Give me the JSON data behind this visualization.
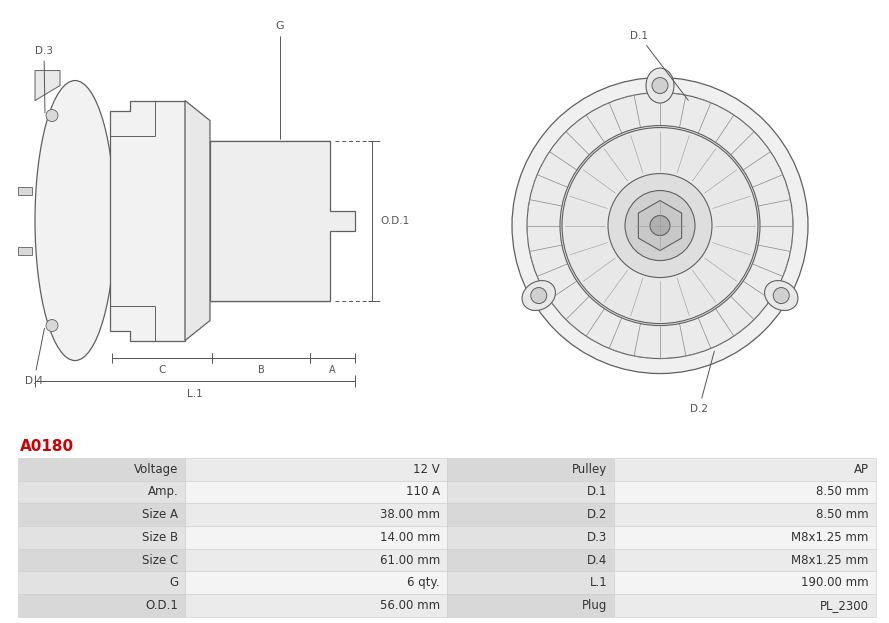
{
  "title": "A0180",
  "title_color": "#cc0000",
  "table_rows": [
    [
      "Voltage",
      "12 V",
      "Pulley",
      "AP"
    ],
    [
      "Amp.",
      "110 A",
      "D.1",
      "8.50 mm"
    ],
    [
      "Size A",
      "38.00 mm",
      "D.2",
      "8.50 mm"
    ],
    [
      "Size B",
      "14.00 mm",
      "D.3",
      "M8x1.25 mm"
    ],
    [
      "Size C",
      "61.00 mm",
      "D.4",
      "M8x1.25 mm"
    ],
    [
      "G",
      "6 qty.",
      "L.1",
      "190.00 mm"
    ],
    [
      "O.D.1",
      "56.00 mm",
      "Plug",
      "PL_2300"
    ]
  ],
  "white_bg": "#ffffff",
  "text_color": "#333333",
  "line_color": "#606060",
  "dim_color": "#555555",
  "font_size_table": 8.5,
  "font_size_title": 11,
  "bg_light": "#f0f0f0",
  "bg_mid": "#e0e0e0",
  "bg_dark": "#c8c8c8"
}
